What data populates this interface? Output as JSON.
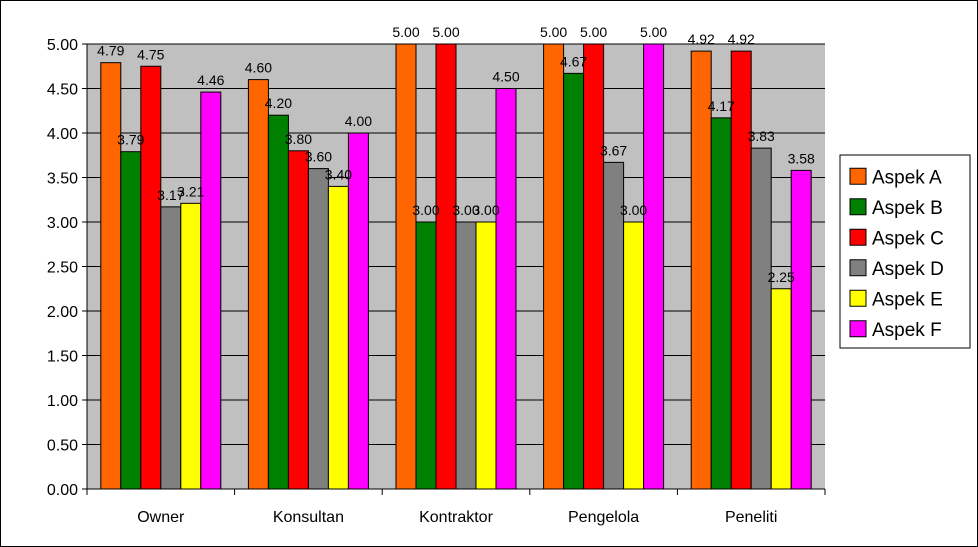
{
  "chart_data": {
    "type": "bar",
    "title": "",
    "xlabel": "",
    "ylabel": "",
    "categories": [
      "Owner",
      "Konsultan",
      "Kontraktor",
      "Pengelola",
      "Peneliti"
    ],
    "ylim": [
      0,
      5
    ],
    "ytick_step": 0.5,
    "ytick_labels": [
      "0.00",
      "0.50",
      "1.00",
      "1.50",
      "2.00",
      "2.50",
      "3.00",
      "3.50",
      "4.00",
      "4.50",
      "5.00"
    ],
    "grid": true,
    "plot_background": "#C0C0C0",
    "legend_position": "right",
    "series": [
      {
        "name": "Aspek A",
        "color": "#FF6600",
        "values": [
          4.79,
          4.6,
          5.0,
          5.0,
          4.92
        ],
        "labels": [
          "4.79",
          "4.60",
          "5.00",
          "5.00",
          "4.92"
        ]
      },
      {
        "name": "Aspek B",
        "color": "#008000",
        "values": [
          3.79,
          4.2,
          3.0,
          4.67,
          4.17
        ],
        "labels": [
          "3.79",
          "4.20",
          "3.00",
          "4.67",
          "4.17"
        ]
      },
      {
        "name": "Aspek C",
        "color": "#FF0000",
        "values": [
          4.75,
          3.8,
          5.0,
          5.0,
          4.92
        ],
        "labels": [
          "4.75",
          "3.80",
          "5.00",
          "5.00",
          "4.92"
        ]
      },
      {
        "name": "Aspek D",
        "color": "#808080",
        "values": [
          3.17,
          3.6,
          3.0,
          3.67,
          3.83
        ],
        "labels": [
          "3.17",
          "3.60",
          "3.00",
          "3.67",
          "3.83"
        ]
      },
      {
        "name": "Aspek E",
        "color": "#FFFF00",
        "values": [
          3.21,
          3.4,
          3.0,
          3.0,
          2.25
        ],
        "labels": [
          "3.21",
          "3.40",
          "3.00",
          "3.00",
          "2.25"
        ]
      },
      {
        "name": "Aspek F",
        "color": "#FF00FF",
        "values": [
          4.46,
          4.0,
          4.5,
          5.0,
          3.58
        ],
        "labels": [
          "4.46",
          "4.00",
          "4.50",
          "5.00",
          "3.58"
        ]
      }
    ]
  }
}
